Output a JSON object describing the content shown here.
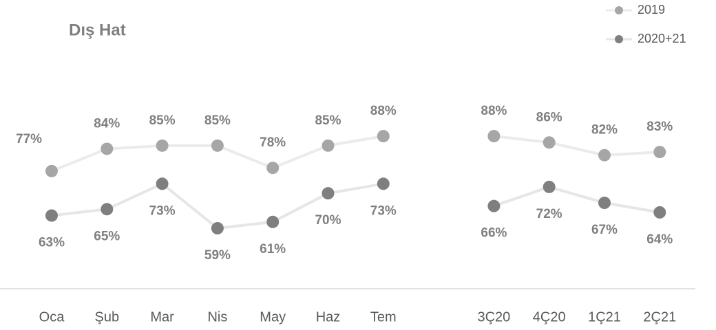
{
  "chart_data": {
    "type": "line",
    "title": "Dış Hat",
    "categories": [
      "Oca",
      "Şub",
      "Mar",
      "Nis",
      "May",
      "Haz",
      "Tem",
      null,
      "3Ç20",
      "4Ç20",
      "1Ç21",
      "2Ç21"
    ],
    "series": [
      {
        "name": "2019",
        "color": "#a6a6a6",
        "line_color": "#ebebeb",
        "values": [
          77,
          84,
          85,
          85,
          78,
          85,
          88,
          null,
          88,
          86,
          82,
          83
        ],
        "value_labels": [
          "77%",
          "84%",
          "85%",
          "85%",
          "78%",
          "85%",
          "88%",
          null,
          "88%",
          "86%",
          "82%",
          "83%"
        ]
      },
      {
        "name": "2020+21",
        "color": "#7f7f7f",
        "line_color": "#e6e6e6",
        "values": [
          63,
          65,
          73,
          59,
          61,
          70,
          73,
          null,
          66,
          72,
          67,
          64
        ],
        "value_labels": [
          "63%",
          "65%",
          "73%",
          "59%",
          "61%",
          "70%",
          "73%",
          null,
          "66%",
          "72%",
          "67%",
          "64%"
        ]
      }
    ],
    "legend": "top-right"
  }
}
